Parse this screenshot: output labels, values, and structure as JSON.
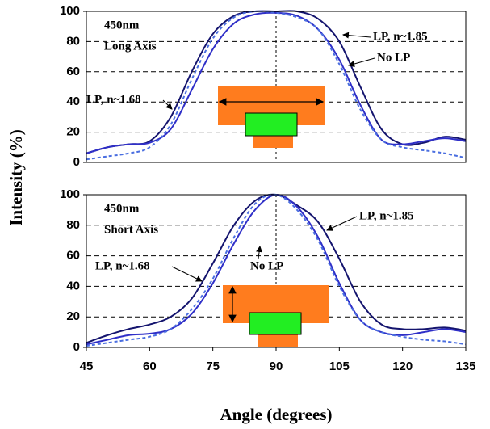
{
  "chart_data": [
    {
      "type": "line",
      "annotation": [
        "450nm",
        "Long Axis"
      ],
      "x": [
        45,
        50,
        55,
        60,
        65,
        70,
        75,
        80,
        85,
        90,
        95,
        100,
        105,
        110,
        115,
        120,
        125,
        130,
        135
      ],
      "series": [
        {
          "name": "LP, n~1.85",
          "color": "#14146e",
          "dashed": false,
          "values": [
            6,
            10,
            12,
            14,
            30,
            60,
            85,
            97,
            100,
            100,
            100,
            95,
            80,
            50,
            22,
            12,
            13,
            17,
            15
          ]
        },
        {
          "name": "LP, n~1.68",
          "color": "#2f2fc8",
          "dashed": false,
          "values": [
            6,
            10,
            12,
            13,
            22,
            48,
            75,
            92,
            98,
            99,
            97,
            88,
            68,
            38,
            15,
            12,
            14,
            16,
            14
          ]
        },
        {
          "name": "No LP",
          "color": "#4a6ee0",
          "dashed": true,
          "values": [
            2,
            4,
            6,
            10,
            25,
            55,
            82,
            96,
            100,
            99,
            96,
            88,
            65,
            35,
            15,
            10,
            8,
            6,
            3
          ]
        }
      ],
      "xlim": [
        45,
        135
      ],
      "ylim": [
        0,
        100
      ],
      "yticks": [
        0,
        20,
        40,
        60,
        80,
        100
      ],
      "grid": true,
      "reference_x": 90
    },
    {
      "type": "line",
      "annotation": [
        "450nm",
        "Short Axis"
      ],
      "x": [
        45,
        50,
        55,
        60,
        65,
        70,
        75,
        80,
        85,
        90,
        95,
        100,
        105,
        110,
        115,
        120,
        125,
        130,
        135
      ],
      "series": [
        {
          "name": "LP, n~1.85",
          "color": "#14146e",
          "dashed": false,
          "values": [
            3,
            8,
            12,
            15,
            20,
            32,
            55,
            80,
            96,
            100,
            93,
            82,
            58,
            30,
            15,
            12,
            12,
            13,
            11
          ]
        },
        {
          "name": "LP, n~1.68",
          "color": "#2f2fc8",
          "dashed": false,
          "values": [
            2,
            5,
            8,
            9,
            12,
            22,
            42,
            68,
            90,
            100,
            92,
            72,
            42,
            18,
            10,
            8,
            10,
            12,
            10
          ]
        },
        {
          "name": "No LP",
          "color": "#4a6ee0",
          "dashed": true,
          "values": [
            1,
            3,
            5,
            7,
            12,
            25,
            45,
            72,
            94,
            100,
            90,
            70,
            40,
            18,
            10,
            7,
            5,
            4,
            2
          ]
        }
      ],
      "xlim": [
        45,
        135
      ],
      "xticks": [
        45,
        60,
        75,
        90,
        105,
        120,
        135
      ],
      "ylim": [
        0,
        100
      ],
      "yticks": [
        0,
        20,
        40,
        60,
        80,
        100
      ],
      "grid": true,
      "reference_x": 90,
      "xlabel": "Angle (degrees)",
      "ylabel": "Intensity (%)"
    }
  ]
}
